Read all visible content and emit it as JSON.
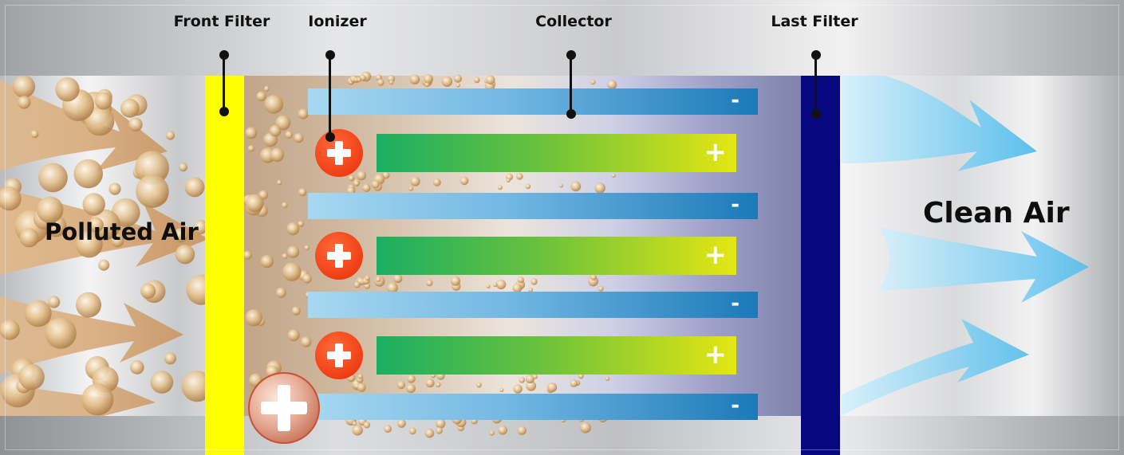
{
  "labels": {
    "front_filter": "Front Filter",
    "ionizer": "Ionizer",
    "collector": "Collector",
    "last_filter": "Last Filter",
    "polluted_air": "Polluted Air",
    "clean_air": "Clean Air"
  },
  "plate_signs": {
    "negative": "-",
    "positive": "+"
  },
  "colors": {
    "front_filter": "#ffff00",
    "last_filter": "#07077f",
    "ionizer": "#ef3e14",
    "negative_plate": "#1b7ab8",
    "positive_plate_start": "#1aae63",
    "positive_plate_end": "#e4e612",
    "dust_particle": "#e3bf8a",
    "clean_air_arrow": "#7fcdf2"
  }
}
